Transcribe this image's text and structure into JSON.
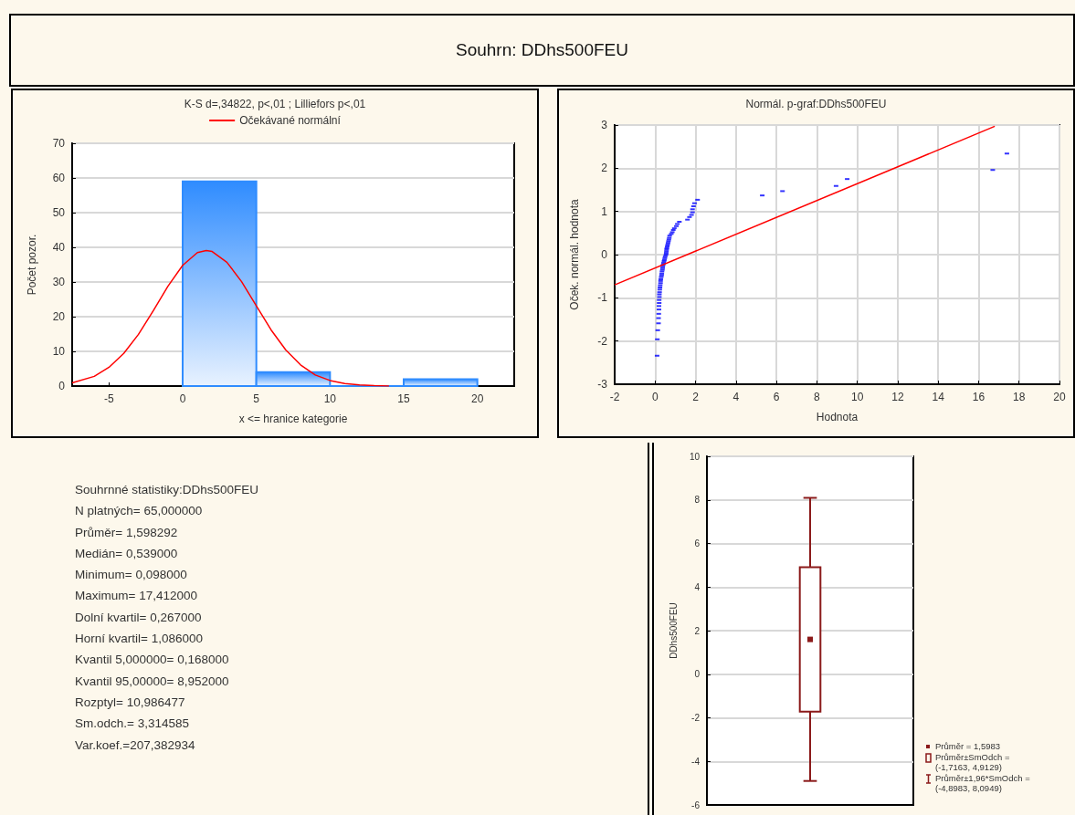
{
  "chart_data": [
    {
      "type": "other",
      "title": "Souhrn: DDhs500FEU"
    },
    {
      "type": "histogram",
      "title": "K-S d=,34822, p<,01 ; Lilliefors p<,01",
      "xlabel": "x <= hranice kategorie",
      "ylabel": "Počet pozor.",
      "xlim": [
        -7.5,
        22.5
      ],
      "xticks": [
        -5,
        0,
        5,
        10,
        15,
        20
      ],
      "ylim": [
        0,
        70
      ],
      "yticks": [
        0,
        10,
        20,
        30,
        40,
        50,
        60,
        70
      ],
      "grid": "y",
      "legend": "top",
      "series": [
        {
          "type": "histogram",
          "color": "#2f8cff",
          "bins": [
            0,
            5,
            10,
            15,
            20
          ],
          "values": [
            59,
            4,
            0,
            2
          ]
        },
        {
          "type": "line",
          "name": "Očekávané normální",
          "color": "#ff0000",
          "x": [
            -7.5,
            -6,
            -5,
            -4,
            -3,
            -2,
            -1,
            0,
            1,
            1.6,
            2,
            3,
            4,
            5,
            6,
            7,
            8,
            9,
            10,
            11,
            12,
            13,
            14
          ],
          "values": [
            0.9,
            2.8,
            5.4,
            9.4,
            14.9,
            21.7,
            28.8,
            34.8,
            38.5,
            39.1,
            38.8,
            35.7,
            30.1,
            23.1,
            16.2,
            10.4,
            6.1,
            3.2,
            1.6,
            0.7,
            0.3,
            0.1,
            0
          ]
        }
      ]
    },
    {
      "type": "scatter",
      "title": "Normál. p-graf:DDhs500FEU",
      "xlabel": "Hodnota",
      "ylabel": "Oček. normál. hodnota",
      "xlim": [
        -2,
        20
      ],
      "xticks": [
        -2,
        0,
        2,
        4,
        6,
        8,
        10,
        12,
        14,
        16,
        18,
        20
      ],
      "ylim": [
        -3,
        3
      ],
      "yticks": [
        -3,
        -2,
        -1,
        0,
        1,
        2,
        3
      ],
      "grid": true,
      "series": [
        {
          "type": "scatter",
          "color": "#0000ff",
          "marker": "square",
          "x": [
            0.098,
            0.11,
            0.13,
            0.168,
            0.17,
            0.18,
            0.19,
            0.19,
            0.2,
            0.2,
            0.21,
            0.21,
            0.22,
            0.23,
            0.24,
            0.25,
            0.267,
            0.27,
            0.28,
            0.3,
            0.32,
            0.33,
            0.34,
            0.36,
            0.37,
            0.38,
            0.4,
            0.42,
            0.44,
            0.46,
            0.48,
            0.5,
            0.539,
            0.55,
            0.56,
            0.57,
            0.58,
            0.6,
            0.62,
            0.64,
            0.66,
            0.68,
            0.7,
            0.72,
            0.8,
            0.85,
            0.9,
            0.95,
            1.05,
            1.1,
            1.2,
            1.6,
            1.7,
            1.8,
            1.85,
            1.85,
            1.9,
            1.95,
            2.1,
            5.3,
            6.3,
            8.95,
            9.5,
            16.7,
            17.4
          ],
          "values": [
            -2.34,
            -1.96,
            -1.75,
            -1.59,
            -1.47,
            -1.37,
            -1.27,
            -1.19,
            -1.12,
            -1.05,
            -0.98,
            -0.92,
            -0.87,
            -0.81,
            -0.76,
            -0.71,
            -0.66,
            -0.61,
            -0.57,
            -0.52,
            -0.48,
            -0.44,
            -0.39,
            -0.35,
            -0.31,
            -0.27,
            -0.23,
            -0.19,
            -0.15,
            -0.12,
            -0.08,
            -0.04,
            0,
            0.04,
            0.08,
            0.12,
            0.15,
            0.19,
            0.23,
            0.27,
            0.31,
            0.35,
            0.39,
            0.44,
            0.48,
            0.52,
            0.57,
            0.61,
            0.66,
            0.71,
            0.76,
            0.81,
            0.87,
            0.92,
            0.98,
            1.05,
            1.12,
            1.19,
            1.27,
            1.37,
            1.47,
            1.59,
            1.75,
            1.96,
            2.34
          ]
        },
        {
          "type": "line",
          "color": "#ff0000",
          "x": [
            -2,
            16.8
          ],
          "values": [
            -0.7,
            2.97
          ]
        }
      ]
    },
    {
      "type": "other",
      "title": "Souhrnné statistiky:DDhs500FEU",
      "annotations": [
        "N platných= 65,000000",
        "Průměr=  1,598292",
        "Medián=  0,539000",
        "Minimum=  0,098000",
        "Maximum= 17,412000",
        "Dolní kvartil=  0,267000",
        "Horní kvartil=  1,086000",
        "Kvantil 5,000000=  0,168000",
        "Kvantil 95,00000=  8,952000",
        "Rozptyl= 10,986477",
        "Sm.odch.=  3,314585",
        "Var.koef.=207,382934"
      ]
    },
    {
      "type": "box",
      "categories": [
        null
      ],
      "ylabel": "DDhs500FEU",
      "ylim": [
        -6,
        10
      ],
      "yticks": [
        -6,
        -4,
        -2,
        0,
        2,
        4,
        6,
        8,
        10
      ],
      "grid": "y",
      "color": "#8b1a1a",
      "boxes": [
        {
          "low": -4.8983,
          "q1": -1.7163,
          "median": 1.5983,
          "q3": 4.9129,
          "high": 8.0949
        }
      ],
      "annotations": [
        "Průměr = 1,5983",
        "Průměr±SmOdch = (-1,7163, 4,9129)",
        "Průměr±1,96*SmOdch = (-4,8983, 8,0949)"
      ]
    }
  ]
}
